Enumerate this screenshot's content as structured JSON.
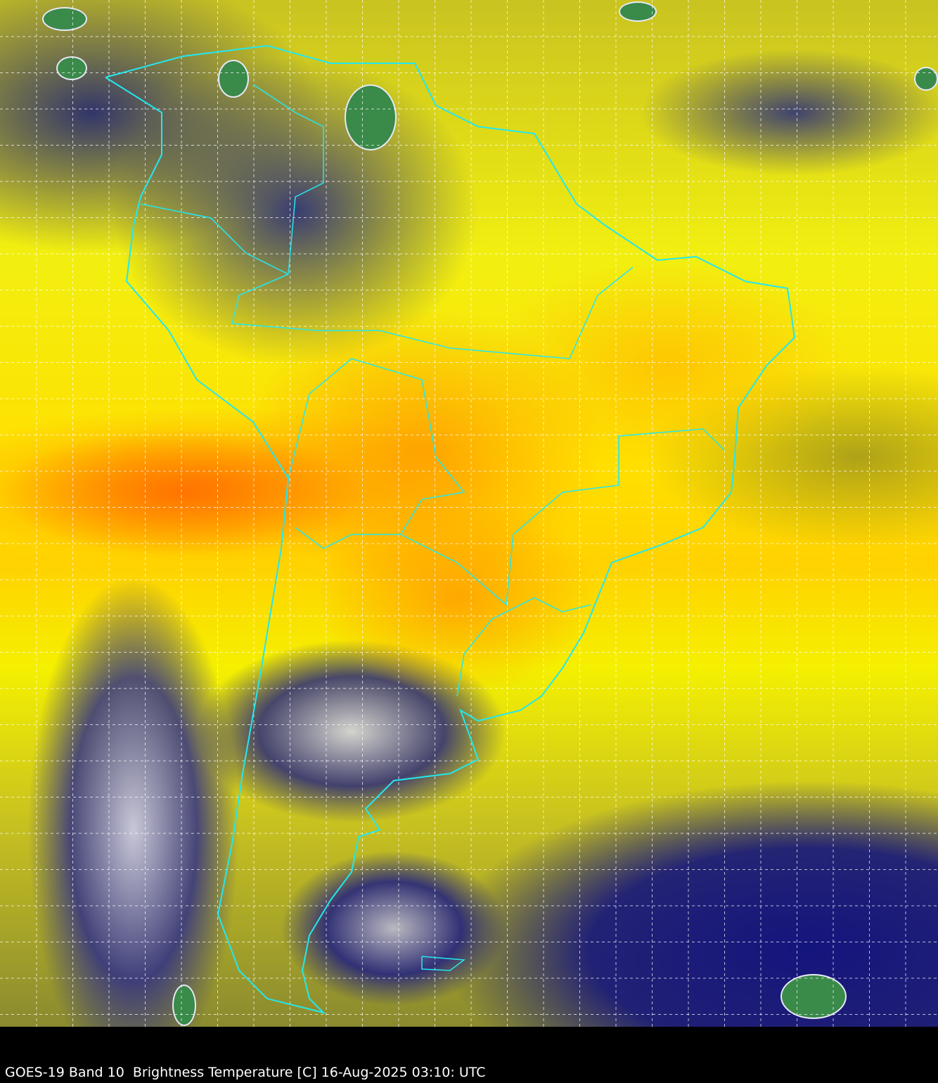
{
  "caption": "GOES-19 Band 10  Brightness Temperature [C] 16-Aug-2025 03:10: UTC",
  "colors": {
    "borders": "#22e8f0",
    "grid": "#ffffff",
    "background": "#000000",
    "warm": "#ff8c00",
    "mid": "#ffff00",
    "cold": "#1a1a80",
    "coldest": "#3a8a4a"
  }
}
